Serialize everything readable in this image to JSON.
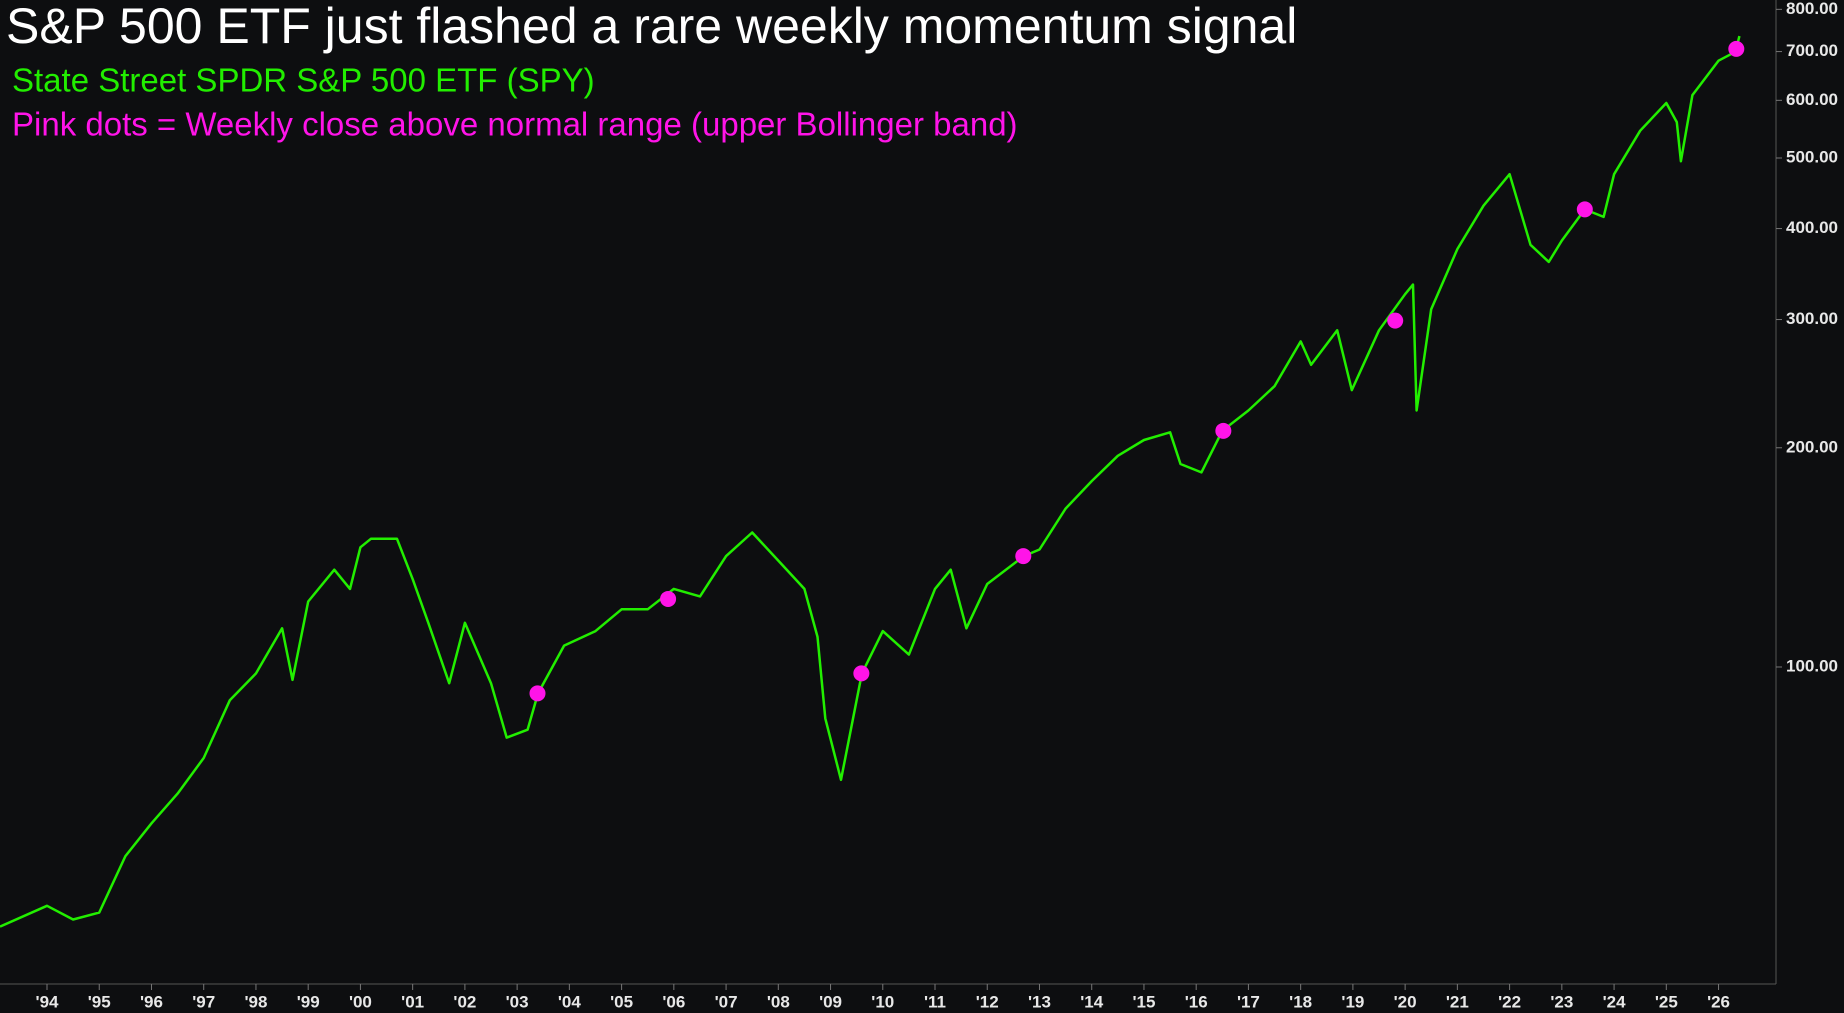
{
  "chart_data": {
    "type": "line",
    "title": "S&P 500 ETF just flashed a rare weekly momentum signal",
    "annotation": "Pink dots = Weekly close above normal range (upper Bollinger band)",
    "log_scale": true,
    "background": "#0d0e10",
    "xlim": [
      1993.1,
      2027.1
    ],
    "ylim": [
      36.7,
      824
    ],
    "xticks": [
      {
        "value": 1994,
        "label": "'94"
      },
      {
        "value": 1995,
        "label": "'95"
      },
      {
        "value": 1996,
        "label": "'96"
      },
      {
        "value": 1997,
        "label": "'97"
      },
      {
        "value": 1998,
        "label": "'98"
      },
      {
        "value": 1999,
        "label": "'99"
      },
      {
        "value": 2000,
        "label": "'00"
      },
      {
        "value": 2001,
        "label": "'01"
      },
      {
        "value": 2002,
        "label": "'02"
      },
      {
        "value": 2003,
        "label": "'03"
      },
      {
        "value": 2004,
        "label": "'04"
      },
      {
        "value": 2005,
        "label": "'05"
      },
      {
        "value": 2006,
        "label": "'06"
      },
      {
        "value": 2007,
        "label": "'07"
      },
      {
        "value": 2008,
        "label": "'08"
      },
      {
        "value": 2009,
        "label": "'09"
      },
      {
        "value": 2010,
        "label": "'10"
      },
      {
        "value": 2011,
        "label": "'11"
      },
      {
        "value": 2012,
        "label": "'12"
      },
      {
        "value": 2013,
        "label": "'13"
      },
      {
        "value": 2014,
        "label": "'14"
      },
      {
        "value": 2015,
        "label": "'15"
      },
      {
        "value": 2016,
        "label": "'16"
      },
      {
        "value": 2017,
        "label": "'17"
      },
      {
        "value": 2018,
        "label": "'18"
      },
      {
        "value": 2019,
        "label": "'19"
      },
      {
        "value": 2020,
        "label": "'20"
      },
      {
        "value": 2021,
        "label": "'21"
      },
      {
        "value": 2022,
        "label": "'22"
      },
      {
        "value": 2023,
        "label": "'23"
      },
      {
        "value": 2024,
        "label": "'24"
      },
      {
        "value": 2025,
        "label": "'25"
      },
      {
        "value": 2026,
        "label": "'26"
      }
    ],
    "yticks": [
      {
        "value": 100,
        "label": "100.00"
      },
      {
        "value": 200,
        "label": "200.00"
      },
      {
        "value": 300,
        "label": "300.00"
      },
      {
        "value": 400,
        "label": "400.00"
      },
      {
        "value": 500,
        "label": "500.00"
      },
      {
        "value": 600,
        "label": "600.00"
      },
      {
        "value": 700,
        "label": "700.00"
      },
      {
        "value": 800,
        "label": "800.00"
      }
    ],
    "series": [
      {
        "name": "State Street SPDR S&P 500 ETF (SPY)",
        "color": "#22ee00",
        "x": [
          1993.1,
          1994.0,
          1994.5,
          1995.0,
          1995.5,
          1996.0,
          1996.5,
          1997.0,
          1997.5,
          1998.0,
          1998.5,
          1998.7,
          1999.0,
          1999.5,
          1999.8,
          2000.0,
          2000.2,
          2000.7,
          2001.0,
          2001.3,
          2001.7,
          2002.0,
          2002.5,
          2002.8,
          2003.2,
          2003.4,
          2003.9,
          2004.5,
          2005.0,
          2005.5,
          2006.0,
          2006.5,
          2007.0,
          2007.5,
          2008.0,
          2008.5,
          2008.75,
          2008.9,
          2009.2,
          2009.6,
          2010.0,
          2010.5,
          2011.0,
          2011.3,
          2011.6,
          2012.0,
          2012.7,
          2013.0,
          2013.5,
          2014.0,
          2014.5,
          2015.0,
          2015.5,
          2015.7,
          2016.1,
          2016.5,
          2017.0,
          2017.5,
          2018.0,
          2018.2,
          2018.7,
          2018.98,
          2019.5,
          2020.0,
          2020.15,
          2020.22,
          2020.5,
          2021.0,
          2021.5,
          2022.0,
          2022.4,
          2022.75,
          2023.0,
          2023.44,
          2023.8,
          2024.0,
          2024.5,
          2025.0,
          2025.2,
          2025.28,
          2025.5,
          2026.0,
          2026.25,
          2026.34,
          2026.4
        ],
        "values": [
          44,
          47,
          45,
          46,
          55,
          61,
          67,
          75,
          90,
          98,
          113,
          96,
          123,
          136,
          128,
          146,
          150,
          150,
          132,
          115,
          95,
          115,
          95,
          80,
          82,
          92,
          107,
          112,
          120,
          120,
          128,
          125,
          142,
          153,
          140,
          128,
          110,
          85,
          70,
          98,
          112,
          104,
          128,
          136,
          113,
          130,
          142,
          145,
          165,
          180,
          195,
          205,
          210,
          190,
          185,
          211,
          225,
          243,
          280,
          260,
          290,
          240,
          290,
          325,
          335,
          225,
          310,
          375,
          430,
          475,
          380,
          360,
          385,
          425,
          415,
          475,
          545,
          595,
          560,
          495,
          610,
          680,
          695,
          706,
          735
        ]
      }
    ],
    "signals": {
      "color": "#ff14e8",
      "x": [
        2003.39,
        2005.89,
        2009.59,
        2012.69,
        2016.52,
        2019.81,
        2023.44,
        2026.34
      ],
      "values": [
        92,
        124,
        98,
        142,
        211,
        299,
        425,
        706
      ]
    }
  }
}
